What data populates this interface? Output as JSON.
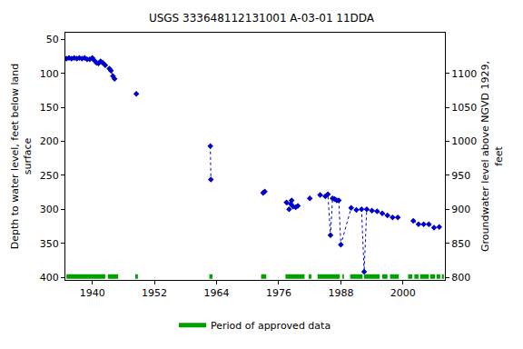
{
  "chart_data": {
    "type": "line",
    "title": "USGS 333648112131001 A-03-01 11DDA",
    "x_label": null,
    "y_label": "Depth to water level, feet below land surface",
    "y2_label": "Groundwater level above NGVD 1929, feet",
    "xlim": [
      1934.8,
      2008.1
    ],
    "xticks": [
      1940,
      1952,
      1964,
      1976,
      1988,
      2000
    ],
    "ylim": [
      404,
      40
    ],
    "yticks": [
      50,
      100,
      150,
      200,
      250,
      300,
      350,
      400
    ],
    "y2lim": [
      796,
      1160
    ],
    "y2ticks": [
      800,
      850,
      900,
      950,
      1000,
      1050,
      1100
    ],
    "grid": false,
    "legend": "bottom",
    "series": [
      {
        "color": "#0000cc",
        "marker": "diamond",
        "line_style": "dot",
        "x": [
          1935,
          1935.5,
          1936,
          1936.5,
          1937,
          1937.5,
          1938,
          1938.5,
          1939,
          1939.5,
          1940,
          1940.3,
          1940.8,
          1941.2,
          1941.6,
          1942,
          1942.5,
          1943.3,
          1943.6,
          1944,
          1944.3,
          null,
          1948.5,
          null,
          1962.8,
          1962.9,
          null,
          1973,
          1973.3,
          null,
          1977.5,
          1978,
          1978.3,
          1978.5,
          1978.8,
          1979.3,
          1979.7,
          null,
          1982,
          null,
          1984,
          1985,
          1985.5,
          1986,
          1986.4,
          1986.8,
          1987.2,
          1987.6,
          1988,
          1990,
          1991,
          1992,
          1992.5,
          1993,
          1994,
          1995,
          1996,
          1997,
          1998,
          1999,
          null,
          2002,
          2003,
          2004,
          2005,
          2006,
          2007
        ],
        "values": [
          78,
          77,
          78,
          77,
          78,
          77,
          78,
          77,
          79,
          79,
          77,
          80,
          84,
          85,
          82,
          84,
          88,
          93,
          96,
          104,
          108,
          null,
          130,
          null,
          207,
          256,
          null,
          276,
          274,
          null,
          290,
          300,
          292,
          287,
          296,
          297,
          295,
          null,
          284,
          null,
          279,
          281,
          278,
          338,
          284,
          285,
          287,
          287,
          352,
          298,
          301,
          300,
          392,
          300,
          302,
          303,
          306,
          309,
          312,
          312,
          null,
          317,
          322,
          322,
          322,
          327,
          326
        ]
      },
      {
        "name": "Period of approved data",
        "type": "period",
        "color": "#00a000",
        "level": 399,
        "periods": [
          [
            1935,
            1942.5
          ],
          [
            1943,
            1945
          ],
          [
            1948.3,
            1948.8
          ],
          [
            1962.6,
            1963.2
          ],
          [
            1972.6,
            1973.6
          ],
          [
            1977.3,
            1981
          ],
          [
            1981.8,
            1982.3
          ],
          [
            1983.5,
            1987.8
          ],
          [
            1988.3,
            1988.6
          ],
          [
            1989.8,
            1992.2
          ],
          [
            1992.5,
            1995.5
          ],
          [
            1996,
            1997
          ],
          [
            1997.5,
            1999.2
          ],
          [
            2001,
            2001.8
          ],
          [
            2002.2,
            2003
          ],
          [
            2003.3,
            2005
          ],
          [
            2005.3,
            2006.2
          ],
          [
            2006.5,
            2007.2
          ],
          [
            2007.5,
            2007.9
          ]
        ]
      }
    ]
  }
}
